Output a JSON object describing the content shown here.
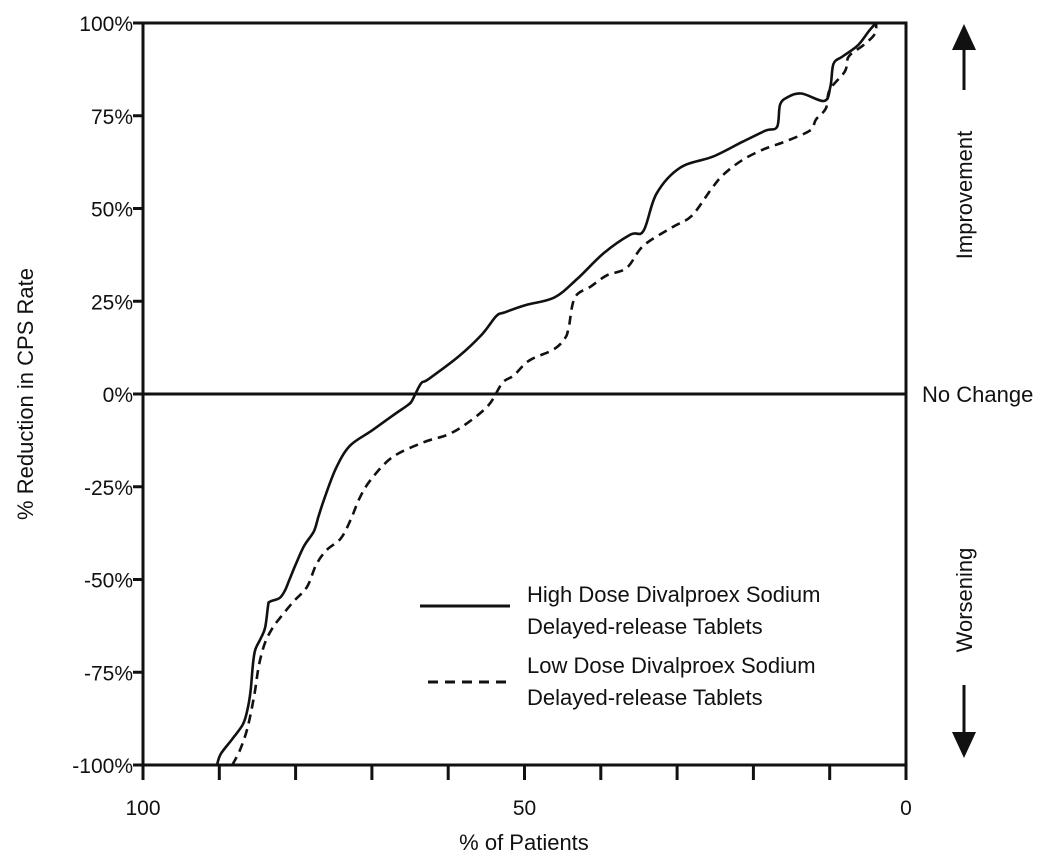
{
  "chart_data": {
    "type": "line",
    "title": "",
    "xlabel": "% of Patients",
    "ylabel": "% Reduction in CPS Rate",
    "xlim": [
      100,
      0
    ],
    "ylim": [
      -100,
      100
    ],
    "x_reversed": true,
    "x_ticks": [
      100,
      90,
      80,
      70,
      60,
      50,
      40,
      30,
      20,
      10,
      0
    ],
    "x_tick_labels": [
      {
        "value": 100,
        "label": "100"
      },
      {
        "value": 50,
        "label": "50"
      },
      {
        "value": 0,
        "label": "0"
      }
    ],
    "y_tick_labels": [
      {
        "value": 100,
        "label": "100%"
      },
      {
        "value": 75,
        "label": "75%"
      },
      {
        "value": 50,
        "label": "50%"
      },
      {
        "value": 25,
        "label": "25%"
      },
      {
        "value": 0,
        "label": "0%"
      },
      {
        "value": -25,
        "label": "-25%"
      },
      {
        "value": -50,
        "label": "-50%"
      },
      {
        "value": -75,
        "label": "-75%"
      },
      {
        "value": -100,
        "label": "-100%"
      }
    ],
    "reference_line": {
      "y": 0,
      "label": "No Change"
    },
    "side_labels": {
      "top": "Improvement",
      "bottom": "Worsening"
    },
    "grid": false,
    "legend_position": "bottom-right",
    "series": [
      {
        "name": "High Dose Divalproex Sodium Delayed-release Tablets",
        "legend_lines": [
          "High Dose Divalproex Sodium",
          "Delayed-release Tablets"
        ],
        "style": "solid",
        "color": "#111111",
        "points": [
          [
            90.3,
            -100
          ],
          [
            89.8,
            -97
          ],
          [
            88.3,
            -93
          ],
          [
            86.9,
            -89
          ],
          [
            86.3,
            -85
          ],
          [
            85.9,
            -80
          ],
          [
            85.6,
            -73
          ],
          [
            85.3,
            -69
          ],
          [
            84.6,
            -66
          ],
          [
            84.0,
            -63
          ],
          [
            83.6,
            -57
          ],
          [
            83.4,
            -56
          ],
          [
            82.1,
            -55
          ],
          [
            81.4,
            -53
          ],
          [
            80.8,
            -50
          ],
          [
            80.0,
            -46
          ],
          [
            78.9,
            -41
          ],
          [
            77.6,
            -37
          ],
          [
            77.0,
            -33
          ],
          [
            76.2,
            -28
          ],
          [
            74.7,
            -20
          ],
          [
            72.9,
            -14
          ],
          [
            70.1,
            -10
          ],
          [
            67.4,
            -6
          ],
          [
            65.3,
            -3
          ],
          [
            64.8,
            -2
          ],
          [
            64.3,
            0
          ],
          [
            63.5,
            3
          ],
          [
            62.6,
            4
          ],
          [
            58.7,
            10
          ],
          [
            55.6,
            16
          ],
          [
            53.7,
            21
          ],
          [
            52.6,
            22
          ],
          [
            49.8,
            24
          ],
          [
            46.1,
            26
          ],
          [
            43.1,
            31
          ],
          [
            39.6,
            38
          ],
          [
            36.1,
            43
          ],
          [
            34.4,
            44
          ],
          [
            32.7,
            54
          ],
          [
            29.6,
            61
          ],
          [
            25.3,
            64
          ],
          [
            21.4,
            68
          ],
          [
            18.4,
            71
          ],
          [
            16.9,
            72
          ],
          [
            16.5,
            78
          ],
          [
            15.5,
            80
          ],
          [
            13.7,
            81
          ],
          [
            10.7,
            79
          ],
          [
            9.9,
            83
          ],
          [
            9.5,
            89
          ],
          [
            8.3,
            91
          ],
          [
            6.3,
            94
          ],
          [
            4.8,
            98
          ],
          [
            3.9,
            100
          ]
        ]
      },
      {
        "name": "Low Dose Divalproex Sodium Delayed-release Tablets",
        "legend_lines": [
          "Low Dose Divalproex Sodium",
          "Delayed-release Tablets"
        ],
        "style": "dashed",
        "color": "#111111",
        "points": [
          [
            88.3,
            -100
          ],
          [
            87.3,
            -96
          ],
          [
            86.3,
            -90
          ],
          [
            85.4,
            -81
          ],
          [
            84.8,
            -73
          ],
          [
            84.0,
            -67
          ],
          [
            83.0,
            -63
          ],
          [
            82.3,
            -61
          ],
          [
            80.3,
            -56
          ],
          [
            78.5,
            -52
          ],
          [
            77.3,
            -46
          ],
          [
            75.9,
            -42
          ],
          [
            74.1,
            -39
          ],
          [
            72.8,
            -34
          ],
          [
            71.6,
            -28
          ],
          [
            70.1,
            -23
          ],
          [
            67.3,
            -17
          ],
          [
            63.2,
            -13
          ],
          [
            60.1,
            -11
          ],
          [
            57.6,
            -8
          ],
          [
            54.7,
            -3
          ],
          [
            52.9,
            3
          ],
          [
            51.4,
            5
          ],
          [
            49.4,
            9
          ],
          [
            46.2,
            12
          ],
          [
            44.7,
            15
          ],
          [
            44.2,
            18
          ],
          [
            43.4,
            26
          ],
          [
            41.3,
            29
          ],
          [
            39.2,
            32
          ],
          [
            36.6,
            34
          ],
          [
            34.4,
            40
          ],
          [
            30.6,
            45
          ],
          [
            28.1,
            48
          ],
          [
            25.6,
            55
          ],
          [
            24.0,
            59
          ],
          [
            21.5,
            63
          ],
          [
            18.6,
            66
          ],
          [
            15.9,
            68
          ],
          [
            12.6,
            71
          ],
          [
            11.8,
            74
          ],
          [
            10.5,
            77
          ],
          [
            10.0,
            82
          ],
          [
            8.0,
            87
          ],
          [
            7.5,
            91
          ],
          [
            5.6,
            94
          ],
          [
            4.1,
            97
          ],
          [
            3.9,
            100
          ]
        ]
      }
    ]
  }
}
